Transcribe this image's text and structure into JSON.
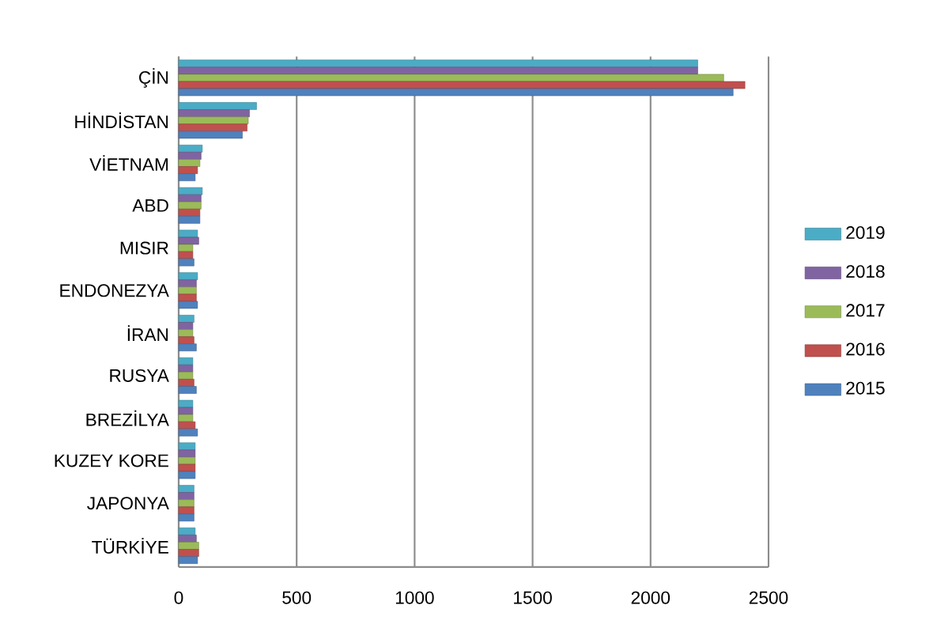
{
  "chart_data": {
    "type": "bar",
    "orientation": "horizontal",
    "categories": [
      "ÇİN",
      "HİNDİSTAN",
      "VİETNAM",
      "ABD",
      "MISIR",
      "ENDONEZYA",
      "İRAN",
      "RUSYA",
      "BREZİLYA",
      "KUZEY KORE",
      "JAPONYA",
      "TÜRKİYE"
    ],
    "series": [
      {
        "name": "2019",
        "color": "#4bacc6",
        "values": [
          2200,
          330,
          100,
          100,
          80,
          80,
          65,
          60,
          60,
          70,
          65,
          70
        ]
      },
      {
        "name": "2018",
        "color": "#8064a2",
        "values": [
          2200,
          300,
          95,
          95,
          85,
          75,
          60,
          60,
          60,
          70,
          65,
          75
        ]
      },
      {
        "name": "2017",
        "color": "#9bbb59",
        "values": [
          2310,
          295,
          90,
          95,
          60,
          75,
          60,
          60,
          60,
          70,
          65,
          85
        ]
      },
      {
        "name": "2016",
        "color": "#c0504d",
        "values": [
          2400,
          290,
          80,
          90,
          60,
          75,
          65,
          65,
          70,
          70,
          65,
          85
        ]
      },
      {
        "name": "2015",
        "color": "#4f81bd",
        "values": [
          2350,
          270,
          70,
          90,
          65,
          80,
          75,
          75,
          80,
          70,
          65,
          80
        ]
      }
    ],
    "xlim": [
      0,
      2500
    ],
    "xticks": [
      0,
      500,
      1000,
      1500,
      2000,
      2500
    ],
    "grid": true,
    "legend": "right"
  }
}
